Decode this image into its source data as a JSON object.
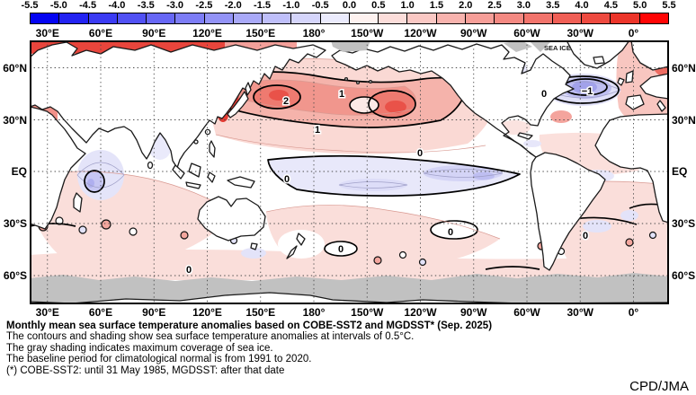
{
  "colorbar": {
    "tick_labels": [
      "-5.5",
      "-5.0",
      "-4.5",
      "-4.0",
      "-3.5",
      "-3.0",
      "-2.5",
      "-2.0",
      "-1.5",
      "-1.0",
      "-0.5",
      "0.0",
      "0.5",
      "1.0",
      "1.5",
      "2.0",
      "2.5",
      "3.0",
      "3.5",
      "4.0",
      "4.5",
      "5.0",
      "5.5"
    ],
    "cell_colors": [
      "#0404F2",
      "#2323F2",
      "#3B3BF3",
      "#5151F4",
      "#6767F5",
      "#7D7DF6",
      "#9393F7",
      "#A9A9F8",
      "#BFBFFA",
      "#D5D5FB",
      "#EBEBFD",
      "#FEF2F0",
      "#FCDDDA",
      "#FAC8C4",
      "#F8B3AE",
      "#F69E98",
      "#F48982",
      "#F2746C",
      "#F05F56",
      "#EE4A40",
      "#EC352A",
      "#FF0505"
    ]
  },
  "map": {
    "top_axis_labels": [
      "30°E",
      "60°E",
      "90°E",
      "120°E",
      "150°E",
      "180°",
      "150°W",
      "120°W",
      "90°W",
      "60°W",
      "30°W",
      "0°"
    ],
    "bottom_axis_labels": [
      "30°E",
      "60°E",
      "90°E",
      "120°E",
      "150°E",
      "180°",
      "150°W",
      "120°W",
      "90°W",
      "60°W",
      "30°W",
      "0°"
    ],
    "left_axis_labels": [
      "60°N",
      "30°N",
      "EQ",
      "30°S",
      "60°S"
    ],
    "right_axis_labels": [
      "60°N",
      "30°N",
      "EQ",
      "30°S",
      "60°S"
    ],
    "sea_ice_label": "SEA ICE",
    "contour_interval": "0.5",
    "contour_labels": [
      {
        "text": "2"
      },
      {
        "text": "1"
      },
      {
        "text": "1"
      },
      {
        "text": "0"
      },
      {
        "text": "0"
      },
      {
        "text": "0"
      },
      {
        "text": "−1"
      },
      {
        "text": "0"
      },
      {
        "text": "0"
      },
      {
        "text": "0"
      },
      {
        "text": "0"
      }
    ]
  },
  "caption": {
    "title": "Monthly mean sea surface temperature anomalies based on COBE-SST2 and MGDSST* (Sep. 2025)",
    "line1": "The contours and shading show sea surface temperature anomalies at intervals of 0.5°C.",
    "line2": "The gray shading indicates maximum coverage of sea ice.",
    "line3": "The baseline period for climatological normal is from 1991 to 2020.",
    "line4": "(*) COBE-SST2: until 31 May 1985, MGDSST: after that date",
    "credit": "CPD/JMA"
  }
}
